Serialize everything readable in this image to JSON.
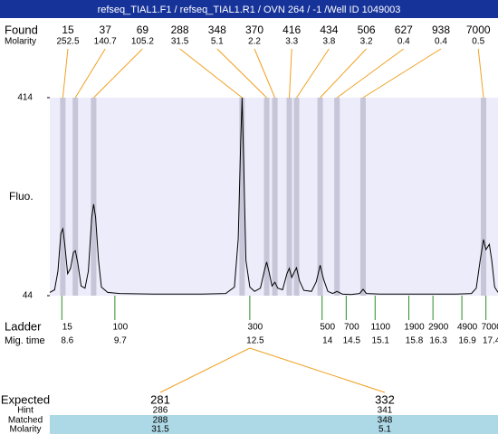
{
  "title": "refseq_TIAL1.F1 / refseq_TIAL1.R1 / OVN 264 / -1 /Well ID 1049003",
  "chart_data": {
    "type": "electropherogram",
    "y_label": "Fluo.",
    "ylim": [
      44,
      414
    ],
    "yticks": [
      44,
      414
    ],
    "xlim": [
      8.35,
      17.65
    ],
    "trace": {
      "color": "#000000",
      "x": [
        8.35,
        8.45,
        8.52,
        8.58,
        8.62,
        8.66,
        8.72,
        8.78,
        8.84,
        8.88,
        8.93,
        9.0,
        9.08,
        9.15,
        9.22,
        9.26,
        9.3,
        9.36,
        9.42,
        9.55,
        9.8,
        10.5,
        11.5,
        12.0,
        12.18,
        12.26,
        12.31,
        12.34,
        12.37,
        12.42,
        12.5,
        12.6,
        12.72,
        12.8,
        12.85,
        12.9,
        12.96,
        13.02,
        13.08,
        13.18,
        13.27,
        13.32,
        13.37,
        13.42,
        13.47,
        13.53,
        13.62,
        13.78,
        13.88,
        13.96,
        14.03,
        14.12,
        14.22,
        14.31,
        14.42,
        14.6,
        14.78,
        14.85,
        14.92,
        15.2,
        16.0,
        16.8,
        17.1,
        17.2,
        17.28,
        17.35,
        17.4,
        17.47,
        17.52,
        17.58,
        17.65
      ],
      "values": [
        50,
        55,
        90,
        160,
        169,
        140,
        85,
        95,
        125,
        128,
        105,
        62,
        58,
        90,
        190,
        215,
        190,
        110,
        60,
        50,
        48,
        47,
        47,
        48,
        60,
        150,
        330,
        414,
        300,
        110,
        60,
        52,
        58,
        90,
        107,
        88,
        62,
        69,
        58,
        55,
        85,
        95,
        78,
        88,
        96,
        72,
        54,
        52,
        70,
        101,
        75,
        52,
        48,
        52,
        47,
        46,
        48,
        56,
        48,
        47,
        47,
        47,
        48,
        58,
        110,
        149,
        130,
        140,
        110,
        60,
        50
      ]
    },
    "found": {
      "label": "Found",
      "molarity_label": "Molarity",
      "sizes": [
        15,
        37,
        69,
        288,
        348,
        370,
        416,
        434,
        506,
        627,
        938,
        7000
      ],
      "molarity": [
        252.5,
        140.7,
        105.2,
        31.5,
        5.1,
        2.2,
        3.3,
        3.8,
        3.2,
        0.4,
        0.4,
        0.5
      ],
      "times": [
        8.62,
        8.88,
        9.26,
        12.34,
        12.85,
        13.02,
        13.32,
        13.47,
        13.96,
        14.31,
        14.85,
        17.35
      ]
    },
    "ladder": {
      "label": "Ladder",
      "time_label": "Mig. time",
      "sizes": [
        15,
        100,
        300,
        500,
        700,
        1100,
        1900,
        2900,
        4900,
        7000
      ],
      "times": [
        8.6,
        9.7,
        12.5,
        14,
        14.5,
        15.1,
        15.8,
        16.3,
        16.9,
        17.4
      ]
    },
    "expected": {
      "label": "Expected",
      "hint_label": "Hint",
      "matched_label": "Matched",
      "molarity_label": "Molarity",
      "sizes": [
        281,
        332
      ],
      "hint": [
        286,
        341
      ],
      "matched": [
        288,
        348
      ],
      "molarity": [
        31.5,
        5.1
      ]
    }
  }
}
